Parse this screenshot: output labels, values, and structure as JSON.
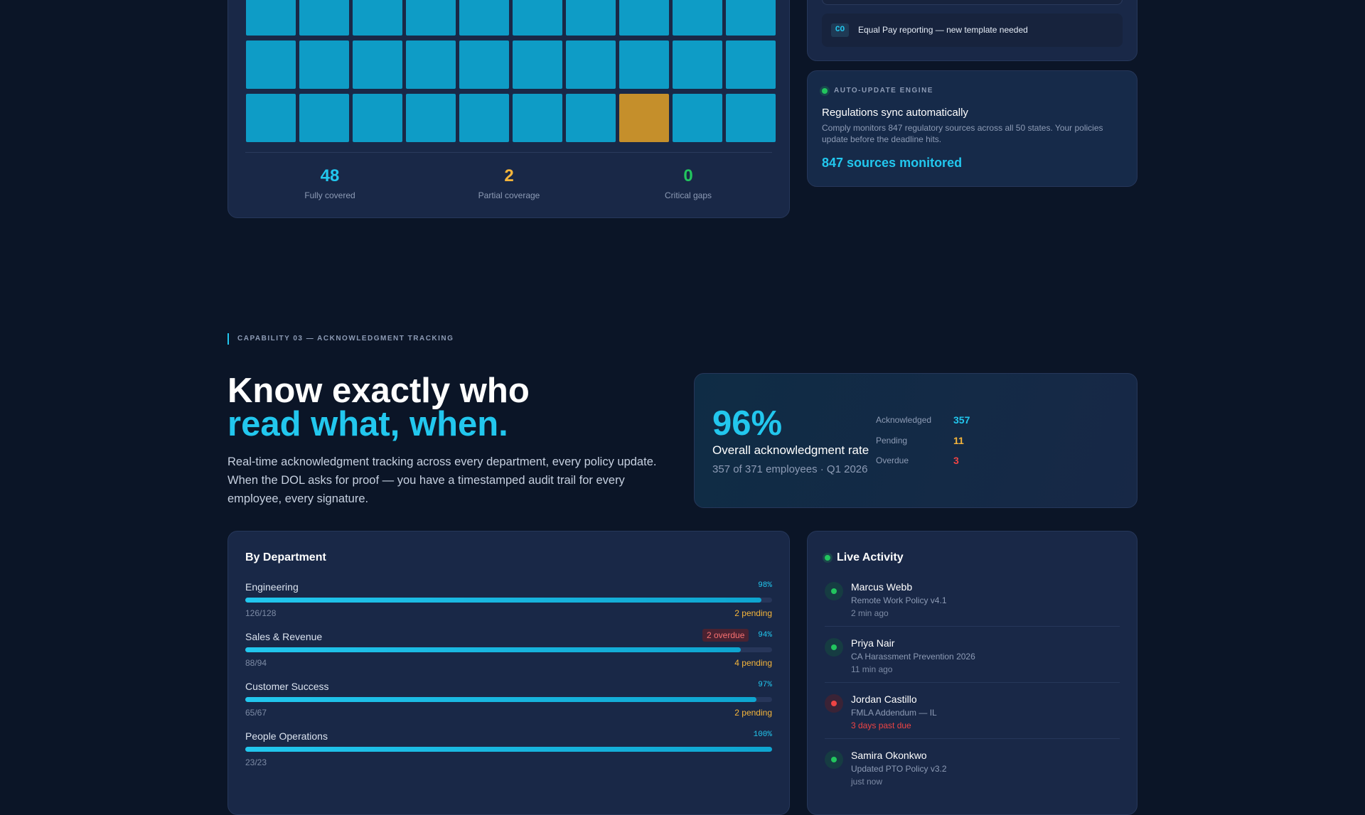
{
  "coverage": {
    "stats": [
      {
        "value": 48,
        "label": "Fully covered"
      },
      {
        "value": 2,
        "label": "Partial coverage"
      },
      {
        "value": 0,
        "label": "Critical gaps"
      }
    ]
  },
  "alert": {
    "badge": "CO",
    "text": "Equal Pay reporting — new template needed"
  },
  "engine": {
    "label": "AUTO-UPDATE ENGINE",
    "title": "Regulations sync automatically",
    "description": "Comply monitors 847 regulatory sources across all 50 states. Your policies update before the deadline hits.",
    "highlight": "847 sources monitored"
  },
  "section": {
    "eyebrow": "CAPABILITY 03 — ACKNOWLEDGMENT TRACKING",
    "heading_line1": "Know exactly who",
    "heading_line2": "read what, when.",
    "body": "Real-time acknowledgment tracking across every department, every policy update. When the DOL asks for proof — you have a timestamped audit trail for every employee, every signature."
  },
  "summary": {
    "rate": "96%",
    "caption": "Overall acknowledgment rate",
    "detail": "357 of 371 employees · Q1 2026",
    "breakdown": [
      {
        "label": "Acknowledged",
        "value": 357
      },
      {
        "label": "Pending",
        "value": 11
      },
      {
        "label": "Overdue",
        "value": 3
      }
    ]
  },
  "departments": {
    "title": "By Department",
    "rows": [
      {
        "name": "Engineering",
        "percent": 98,
        "percent_label": "98%",
        "count": "126/128",
        "pending": "2 pending"
      },
      {
        "name": "Sales & Revenue",
        "percent": 94,
        "percent_label": "94%",
        "count": "88/94",
        "pending": "4 pending",
        "overdue": "2 overdue"
      },
      {
        "name": "Customer Success",
        "percent": 97,
        "percent_label": "97%",
        "count": "65/67",
        "pending": "2 pending"
      },
      {
        "name": "People Operations",
        "percent": 100,
        "percent_label": "100%",
        "count": "23/23"
      }
    ]
  },
  "activity": {
    "title": "Live Activity",
    "items": [
      {
        "name": "Marcus Webb",
        "policy": "Remote Work Policy v4.1",
        "time": "2 min ago",
        "status": "ok"
      },
      {
        "name": "Priya Nair",
        "policy": "CA Harassment Prevention 2026",
        "time": "11 min ago",
        "status": "ok"
      },
      {
        "name": "Jordan Castillo",
        "policy": "FMLA Addendum — IL",
        "time": "3 days past due",
        "status": "late"
      },
      {
        "name": "Samira Okonkwo",
        "policy": "Updated PTO Policy v3.2",
        "time": "just now",
        "status": "ok"
      }
    ]
  }
}
